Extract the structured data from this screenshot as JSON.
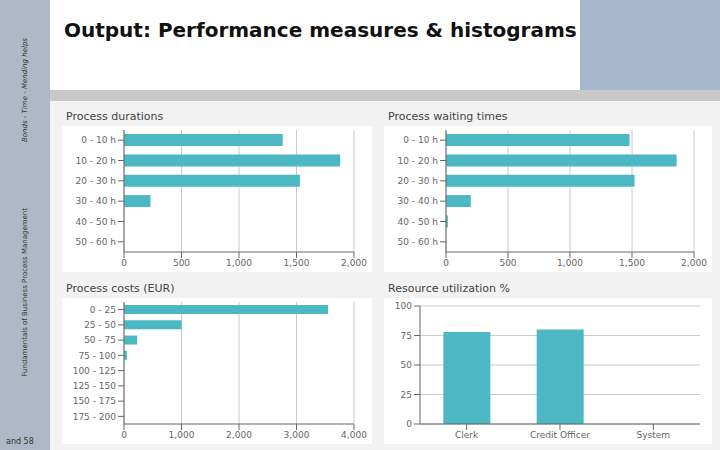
{
  "title": "Output: Performance measures & histograms",
  "annotations": [
    "Bonds - Time - Mending helps",
    "Fundamentals of Business Process Management",
    "and 58"
  ],
  "chart_data": [
    {
      "type": "bar",
      "title": "Process durations",
      "orientation": "horizontal",
      "categories": [
        "0 - 10 h",
        "10 - 20 h",
        "20 - 30 h",
        "30 - 40 h",
        "40 - 50 h",
        "50 - 60 h"
      ],
      "values": [
        1380,
        1880,
        1530,
        230,
        0,
        0
      ],
      "color": "#4bb8c4",
      "xlim": [
        0,
        2000
      ],
      "xticks": [
        0,
        500,
        {
          "value": 1000,
          "label": "1,000"
        },
        {
          "value": 1500,
          "label": "1,500"
        },
        {
          "value": 2000,
          "label": "2,000"
        }
      ],
      "grid": true
    },
    {
      "type": "bar",
      "title": "Process waiting times",
      "orientation": "horizontal",
      "categories": [
        "0 - 10 h",
        "10 - 20 h",
        "20 - 30 h",
        "30 - 40 h",
        "40 - 50 h",
        "50 - 60 h"
      ],
      "values": [
        1480,
        1860,
        1520,
        200,
        15,
        0
      ],
      "color": "#4bb8c4",
      "xlim": [
        0,
        2000
      ],
      "xticks": [
        0,
        500,
        {
          "value": 1000,
          "label": "1,000"
        },
        {
          "value": 1500,
          "label": "1,500"
        },
        {
          "value": 2000,
          "label": "2,000"
        }
      ],
      "grid": true
    },
    {
      "type": "bar",
      "title": "Process costs (EUR)",
      "orientation": "horizontal",
      "categories": [
        "0 - 25",
        "25 - 50",
        "50 - 75",
        "75 - 100",
        "100 - 125",
        "125 - 150",
        "150 - 175",
        "175 - 200"
      ],
      "values": [
        3550,
        1000,
        230,
        50,
        0,
        0,
        0,
        0
      ],
      "color": "#4bb8c4",
      "xlim": [
        0,
        4000
      ],
      "xticks": [
        0,
        {
          "value": 1000,
          "label": "1,000"
        },
        {
          "value": 2000,
          "label": "2,000"
        },
        {
          "value": 3000,
          "label": "3,000"
        },
        {
          "value": 4000,
          "label": "4,000"
        }
      ],
      "grid": true
    },
    {
      "type": "bar",
      "title": "Resource utilization %",
      "categories": [
        "Clerk",
        "Credit Officer",
        "System"
      ],
      "values": [
        78,
        80,
        0
      ],
      "color": "#4bb8c4",
      "ylim": [
        0,
        100
      ],
      "yticks": [
        0,
        25,
        50,
        75,
        100
      ],
      "grid": true
    }
  ]
}
